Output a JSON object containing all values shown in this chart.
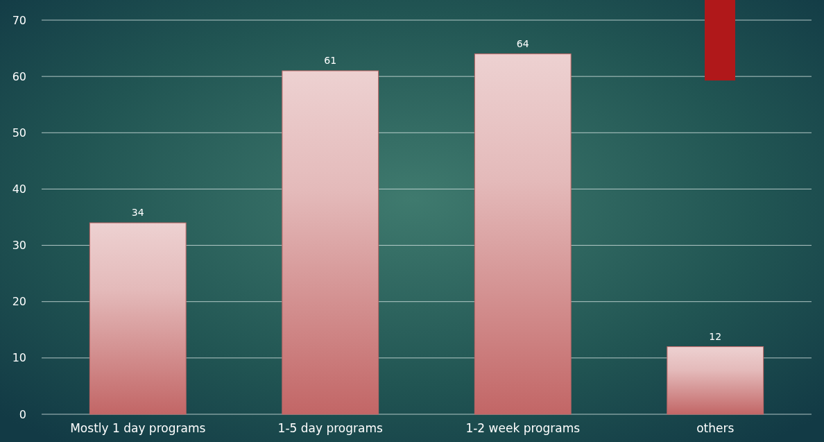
{
  "chart_data": {
    "type": "bar",
    "categories": [
      "Mostly 1 day programs",
      "1-5 day programs",
      "1-2 week programs",
      "others"
    ],
    "values": [
      34,
      61,
      64,
      12
    ],
    "color": "#c26666",
    "ylim": [
      0,
      70
    ],
    "yticks": [
      0,
      10,
      20,
      30,
      40,
      50,
      60,
      70
    ],
    "grid": "y",
    "data_labels": true
  }
}
